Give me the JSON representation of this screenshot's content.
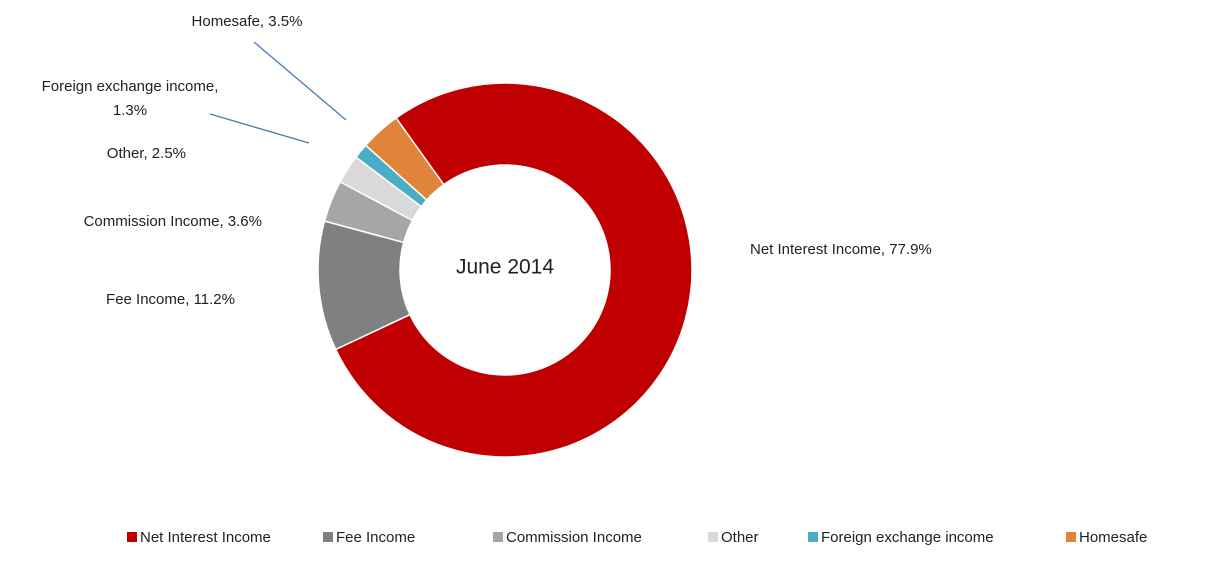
{
  "chart_data": {
    "type": "donut",
    "center_label": "June 2014",
    "categories": [
      "Net Interest Income",
      "Fee Income",
      "Commission Income",
      "Other",
      "Foreign exchange income",
      "Homesafe"
    ],
    "values": [
      77.9,
      11.2,
      3.6,
      2.5,
      1.3,
      3.5
    ],
    "value_labels": [
      "Net Interest Income, 77.9%",
      "Fee Income, 11.2%",
      "Commission Income, 3.6%",
      "Other, 2.5%",
      "Foreign exchange income, 1.3%",
      "Homesafe, 3.5%"
    ],
    "colors": [
      "#c00000",
      "#808080",
      "#a6a6a6",
      "#d9d9d9",
      "#4bacc6",
      "#e0843c"
    ],
    "legend": "bottom"
  }
}
